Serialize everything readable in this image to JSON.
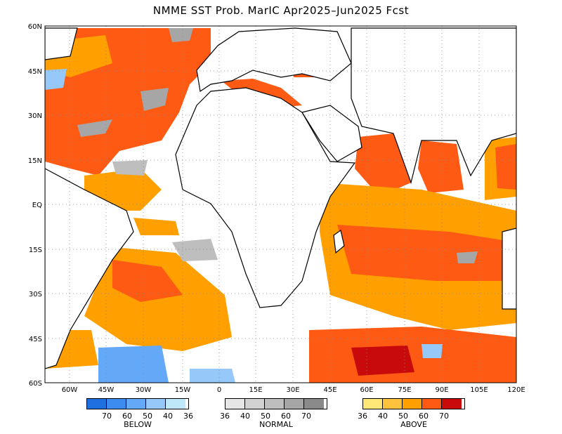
{
  "title": "NMME SST Prob. MarIC  Apr2025–Jun2025 Fcst",
  "map": {
    "lon_range": [
      -75,
      120
    ],
    "lat_range": [
      -60,
      60
    ],
    "lat_ticks": [
      "60N",
      "45N",
      "30N",
      "15N",
      "EQ",
      "15S",
      "30S",
      "45S",
      "60S"
    ],
    "lon_ticks": [
      "60W",
      "45W",
      "30W",
      "15W",
      "0",
      "15E",
      "30E",
      "45E",
      "60E",
      "75E",
      "90E",
      "105E",
      "120E"
    ],
    "colors": {
      "land_outline": "#000000",
      "grid": "#888888",
      "below": [
        "#1e6fe0",
        "#3c8cf0",
        "#64a8f8",
        "#96c8fa",
        "#bfe8fa"
      ],
      "normal": [
        "#e6e6e6",
        "#d2d2d2",
        "#bebebe",
        "#a6a6a6",
        "#8a8a8a"
      ],
      "above": [
        "#ffe878",
        "#ffc23c",
        "#ffa000",
        "#ff5a14",
        "#c80a0a"
      ]
    }
  },
  "legend": {
    "below": {
      "label": "BELOW",
      "ticks": [
        "70",
        "60",
        "50",
        "40",
        "36"
      ]
    },
    "normal": {
      "label": "NORMAL",
      "ticks": [
        "36",
        "40",
        "50",
        "60",
        "70"
      ]
    },
    "above": {
      "label": "ABOVE",
      "ticks": [
        "36",
        "40",
        "50",
        "60",
        "70"
      ]
    }
  }
}
